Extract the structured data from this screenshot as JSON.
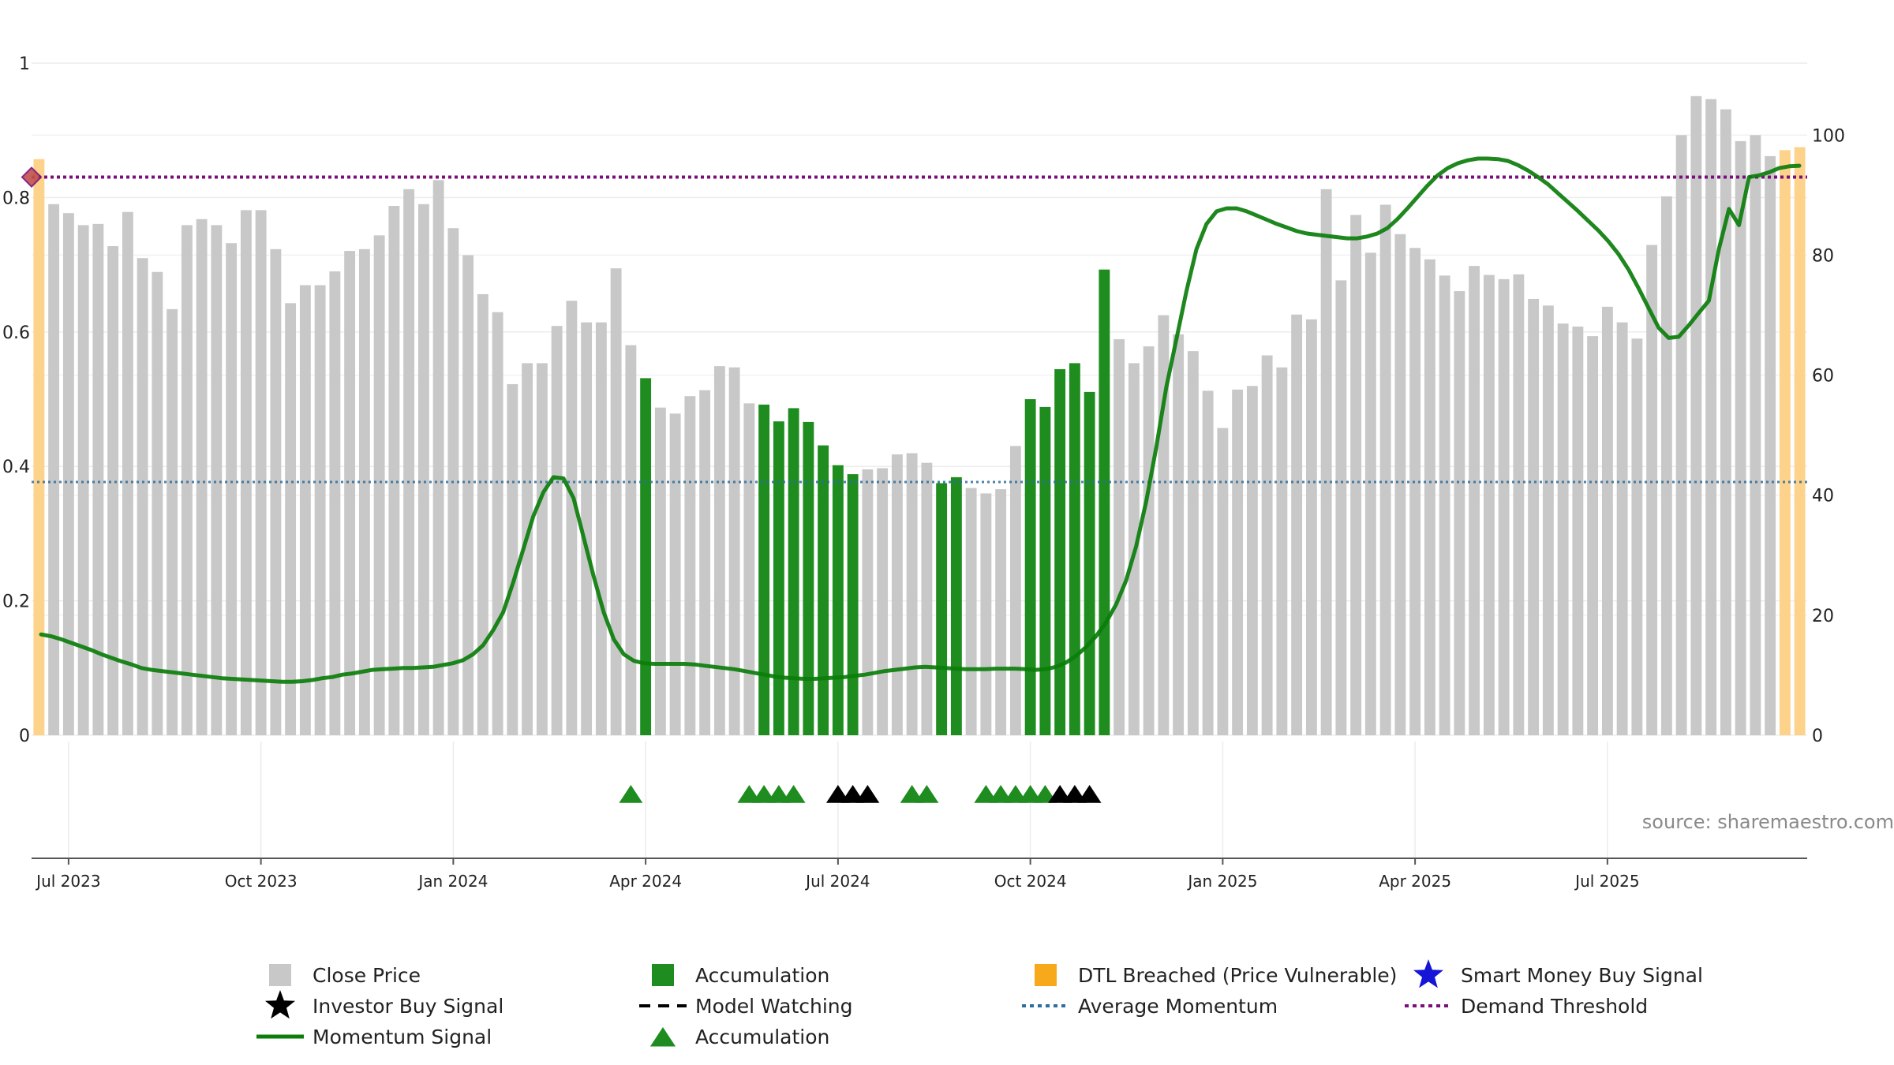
{
  "chart_data": {
    "type": "bar",
    "source": "source: sharemaestro.com",
    "left_axis": {
      "ticks": [
        "0",
        "0.2",
        "0.4",
        "0.6",
        "0.8",
        "1"
      ],
      "range": [
        0,
        1
      ]
    },
    "right_axis": {
      "ticks": [
        "0",
        "20",
        "40",
        "60",
        "80",
        "100"
      ],
      "range": [
        0,
        112
      ]
    },
    "x_axis": {
      "ticks": [
        {
          "label": "Jul 2023",
          "bar_index": 2
        },
        {
          "label": "Oct 2023",
          "bar_index": 15
        },
        {
          "label": "Jan 2024",
          "bar_index": 28
        },
        {
          "label": "Apr 2024",
          "bar_index": 41
        },
        {
          "label": "Jul 2024",
          "bar_index": 54
        },
        {
          "label": "Oct 2024",
          "bar_index": 67
        },
        {
          "label": "Jan 2025",
          "bar_index": 80
        },
        {
          "label": "Apr 2025",
          "bar_index": 93
        },
        {
          "label": "Jul 2025",
          "bar_index": 106
        }
      ]
    },
    "colors": {
      "close_price": "#c8c8c8",
      "accumulation": "#1e8c1e",
      "dtl_breached": "#fdd28a",
      "momentum": "#0b7d0b",
      "average_momentum": "#2c6e9e",
      "demand_threshold": "#7a0f7a",
      "investor_signal": "#000000",
      "accumulation_marker": "#1e8c1e",
      "smart_money": "#1515d6"
    },
    "bar_states": "OGGGGGGGGGGGGGGGGGGGGGGGGGGGGGGGGGGGGGGGGAGGGGGGGAAAAAAAGGGGGAAGGGGAAAAAAGGGGGGGGGGGGGGGGGGGGGGGGGGGGGGGGGGGGGGGGGGGGGOOOOOOOOO",
    "close_price": [
      96,
      88.5,
      87,
      85,
      85.2,
      81.5,
      87.2,
      79.5,
      77.2,
      71,
      85,
      86,
      85,
      82,
      87.5,
      87.5,
      81,
      72,
      75,
      75,
      77.3,
      80.7,
      81,
      83.3,
      88.2,
      91,
      88.5,
      92.5,
      84.5,
      80,
      73.5,
      70.5,
      58.5,
      62,
      62,
      68.2,
      72.4,
      68.8,
      68.8,
      77.8,
      65,
      59.5,
      54.6,
      53.6,
      56.5,
      57.5,
      61.5,
      61.3,
      55.3,
      55.1,
      52.3,
      54.5,
      52.2,
      48.3,
      45,
      43.5,
      44.3,
      44.5,
      46.8,
      47,
      45.4,
      42,
      43,
      41.2,
      40.3,
      41,
      48.2,
      56,
      54.7,
      61,
      62,
      57.2,
      77.6,
      66,
      62,
      64.8,
      70,
      66.8,
      64,
      57.4,
      51.2,
      57.6,
      58.2,
      63.3,
      61.3,
      70.1,
      69.3,
      91,
      75.8,
      86.7,
      80.4,
      88.4,
      83.5,
      81.2,
      79.3,
      76.6,
      74,
      78.2,
      76.7,
      76,
      76.8,
      72.7,
      71.6,
      68.6,
      68.1,
      66.5,
      71.4,
      68.8,
      66.1,
      81.7,
      89.8,
      100,
      106.5,
      106,
      104.3,
      99,
      100,
      96.5,
      97.5,
      98
    ],
    "momentum": [
      16.8,
      16.5,
      16,
      15.4,
      14.8,
      14.2,
      13.5,
      12.9,
      12.3,
      11.8,
      11.2,
      10.9,
      10.7,
      10.5,
      10.3,
      10.1,
      9.9,
      9.7,
      9.5,
      9.4,
      9.3,
      9.2,
      9.1,
      9,
      8.9,
      8.9,
      9,
      9.2,
      9.5,
      9.7,
      10.1,
      10.3,
      10.6,
      10.9,
      11,
      11.1,
      11.2,
      11.2,
      11.3,
      11.4,
      11.7,
      12,
      12.5,
      13.5,
      15,
      17.5,
      20.5,
      25.5,
      31,
      36.5,
      40.5,
      43,
      42.8,
      39.5,
      33,
      26.5,
      20.5,
      16,
      13.5,
      12.4,
      12,
      11.9,
      11.9,
      11.9,
      11.9,
      11.8,
      11.6,
      11.4,
      11.2,
      11,
      10.7,
      10.4,
      10.1,
      9.8,
      9.6,
      9.5,
      9.4,
      9.4,
      9.5,
      9.6,
      9.7,
      9.9,
      10.1,
      10.4,
      10.7,
      10.9,
      11.1,
      11.3,
      11.4,
      11.3,
      11.2,
      11.1,
      11,
      11,
      11,
      11.1,
      11.1,
      11.1,
      11,
      10.9,
      11,
      11.4,
      12.1,
      13.2,
      14.7,
      16.5,
      18.8,
      21.8,
      25.8,
      31.5,
      39,
      48,
      58,
      66,
      74,
      81,
      85.2,
      87.3,
      87.8,
      87.8,
      87.3,
      86.6,
      85.9,
      85.2,
      84.6,
      84,
      83.6,
      83.4,
      83.2,
      83,
      82.8,
      82.8,
      83.1,
      83.6,
      84.5,
      86,
      87.8,
      89.7,
      91.6,
      93.3,
      94.5,
      95.3,
      95.8,
      96.1,
      96.1,
      96,
      95.7,
      95,
      94.1,
      93,
      91.8,
      90.3,
      88.8,
      87.3,
      85.7,
      84.1,
      82.3,
      80.2,
      77.6,
      74.5,
      71.2,
      67.9,
      66.2,
      66.4,
      68.3,
      70.4,
      72.4,
      81,
      87.7,
      85,
      93,
      93.3,
      93.8,
      94.5,
      94.8,
      94.9
    ],
    "average_momentum_value": 42.2,
    "demand_threshold_value": 93,
    "investor_buy_signals": [
      54,
      55,
      56,
      69,
      70,
      71
    ],
    "accumulation_markers": [
      40,
      48,
      49,
      50,
      51,
      59,
      60,
      64,
      65,
      66,
      67,
      68
    ],
    "legend": [
      {
        "label": "Close Price",
        "marker": "gray-square"
      },
      {
        "label": "Accumulation",
        "marker": "green-square"
      },
      {
        "label": "DTL Breached (Price Vulnerable)",
        "marker": "orange-square"
      },
      {
        "label": "Smart Money Buy Signal",
        "marker": "blue-star"
      },
      {
        "label": "Investor Buy Signal",
        "marker": "black-star"
      },
      {
        "label": "Model Watching",
        "marker": "black-dash-line"
      },
      {
        "label": "Average Momentum",
        "marker": "blue-dotted-line"
      },
      {
        "label": "Demand Threshold",
        "marker": "purple-dotted-line"
      },
      {
        "label": "Momentum Signal",
        "marker": "green-line"
      },
      {
        "label": "Accumulation",
        "marker": "green-triangle"
      }
    ]
  }
}
